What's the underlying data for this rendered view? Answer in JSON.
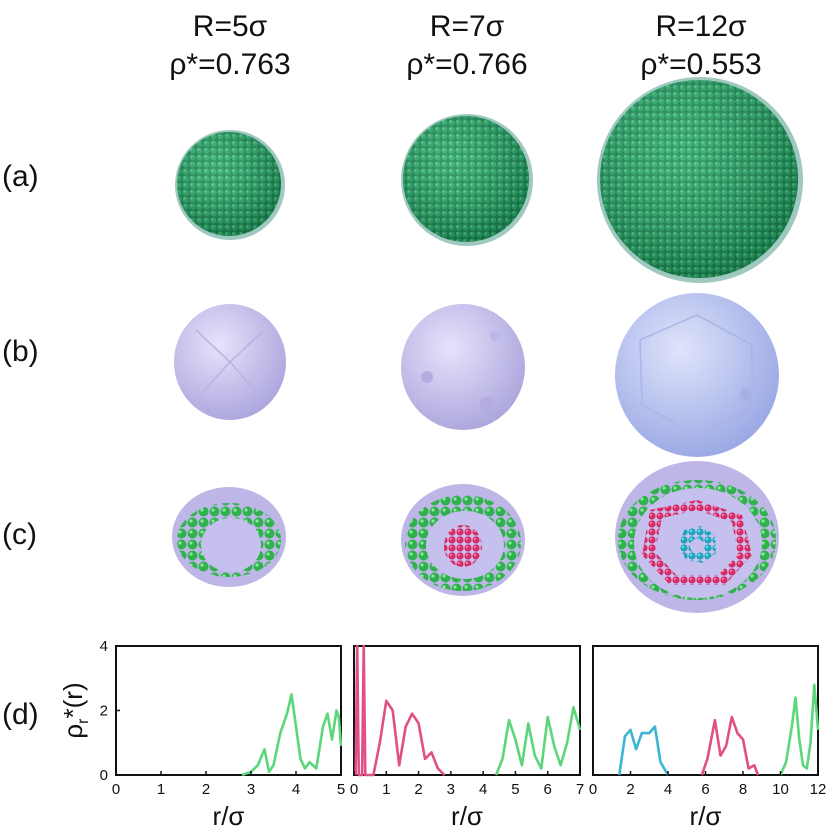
{
  "columns": [
    {
      "radius": "R=5σ",
      "density": "ρ*=0.763"
    },
    {
      "radius": "R=7σ",
      "density": "ρ*=0.766"
    },
    {
      "radius": "R=12σ",
      "density": "ρ*=0.553"
    }
  ],
  "rows": [
    {
      "label": "(a)"
    },
    {
      "label": "(b)"
    },
    {
      "label": "(c)"
    },
    {
      "label": "(d)"
    }
  ],
  "colors": {
    "particle_green": "#1e9a5e",
    "shell_green": "#2fbb4f",
    "particle_pink": "#e0306e",
    "particle_cyan": "#22b2c8",
    "surface_lavender": "#c9c5ee",
    "surface_blue": "#b9c3f0",
    "curve_green": "#5bd67a",
    "curve_pink": "#e04f86",
    "curve_cyan": "#3bb6d2"
  },
  "chart_data": [
    {
      "type": "line",
      "ylabel": "ρr*(r)",
      "xlabel": "r/σ",
      "xlim": [
        0,
        5
      ],
      "ylim": [
        0,
        4
      ],
      "xticks": [
        "0",
        "1",
        "2",
        "3",
        "4",
        "5"
      ],
      "yticks": [
        "0",
        "2",
        "4"
      ],
      "series": [
        {
          "color": "green",
          "x": [
            2.8,
            3.0,
            3.15,
            3.3,
            3.4,
            3.5,
            3.65,
            3.8,
            3.9,
            4.0,
            4.1,
            4.2,
            4.3,
            4.45,
            4.6,
            4.7,
            4.8,
            4.9,
            4.95,
            5.0
          ],
          "y": [
            0,
            0.1,
            0.3,
            0.8,
            0.1,
            0.3,
            1.3,
            1.9,
            2.5,
            1.5,
            0.5,
            0.2,
            0.4,
            0.2,
            1.5,
            1.9,
            1.1,
            2.0,
            1.8,
            0.9
          ]
        }
      ]
    },
    {
      "type": "line",
      "xlabel": "r/σ",
      "xlim": [
        0,
        7
      ],
      "ylim": [
        0,
        4
      ],
      "xticks": [
        "0",
        "1",
        "2",
        "3",
        "4",
        "5",
        "6",
        "7"
      ],
      "series": [
        {
          "color": "pink",
          "x": [
            0.05,
            0.1,
            0.15,
            0.25,
            0.3,
            0.35,
            0.6,
            0.8,
            1.0,
            1.2,
            1.4,
            1.6,
            1.8,
            2.0,
            2.2,
            2.4,
            2.6,
            2.8
          ],
          "y": [
            0,
            4,
            0,
            0,
            4,
            0,
            0,
            1.0,
            2.3,
            2.0,
            0.3,
            1.5,
            1.9,
            1.6,
            0.5,
            0.7,
            0.2,
            0
          ]
        },
        {
          "color": "green",
          "x": [
            4.4,
            4.6,
            4.8,
            5.0,
            5.2,
            5.4,
            5.6,
            5.8,
            6.0,
            6.2,
            6.4,
            6.6,
            6.8,
            7.0
          ],
          "y": [
            0,
            0.5,
            1.7,
            1.1,
            0.3,
            1.6,
            0.6,
            0.2,
            1.8,
            0.9,
            0.3,
            1.0,
            2.1,
            1.4
          ]
        }
      ]
    },
    {
      "type": "line",
      "xlabel": "r/σ",
      "xlim": [
        0,
        12
      ],
      "ylim": [
        0,
        4
      ],
      "xticks": [
        "0",
        "2",
        "4",
        "6",
        "8",
        "10",
        "12"
      ],
      "series": [
        {
          "color": "cyan",
          "x": [
            1.4,
            1.7,
            2.0,
            2.3,
            2.6,
            3.0,
            3.3,
            3.6,
            4.0
          ],
          "y": [
            0,
            1.2,
            1.4,
            0.8,
            1.3,
            1.3,
            1.5,
            0.4,
            0
          ]
        },
        {
          "color": "pink",
          "x": [
            5.8,
            6.1,
            6.5,
            6.8,
            7.1,
            7.4,
            7.7,
            8.0,
            8.3,
            8.6,
            8.8
          ],
          "y": [
            0,
            0.5,
            1.7,
            0.6,
            0.9,
            1.8,
            1.3,
            1.1,
            0.2,
            0.3,
            0
          ]
        },
        {
          "color": "green",
          "x": [
            10.0,
            10.3,
            10.6,
            10.8,
            11.0,
            11.2,
            11.4,
            11.6,
            11.8,
            12.0
          ],
          "y": [
            0,
            0.4,
            1.5,
            2.4,
            1.1,
            0.3,
            0.2,
            1.0,
            2.8,
            1.4
          ]
        }
      ]
    }
  ]
}
